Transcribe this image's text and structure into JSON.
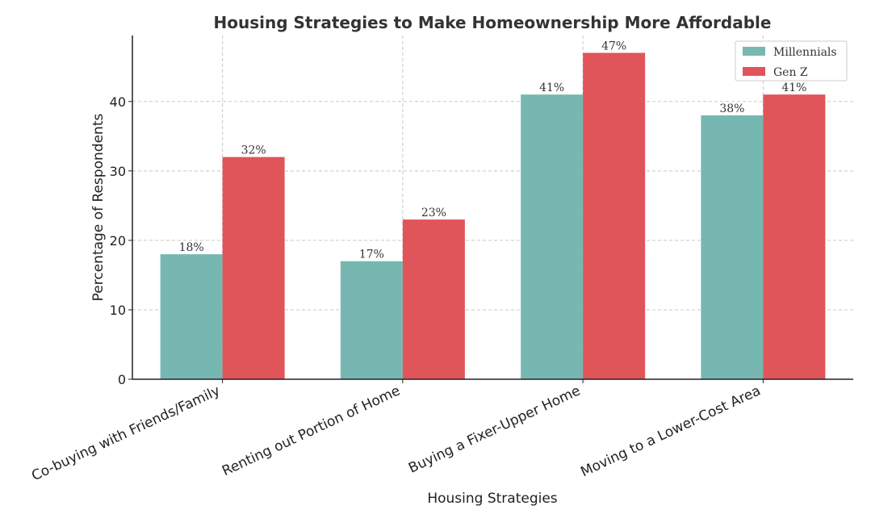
{
  "chart_data": {
    "type": "bar",
    "title": "Housing Strategies to Make Homeownership More Affordable",
    "xlabel": "Housing Strategies",
    "ylabel": "Percentage of Respondents",
    "categories": [
      "Co-buying with Friends/Family",
      "Renting out Portion of Home",
      "Buying a Fixer-Upper Home",
      "Moving to a Lower-Cost Area"
    ],
    "series": [
      {
        "name": "Millennials",
        "color": "#77b7b1",
        "values": [
          18,
          17,
          41,
          38
        ]
      },
      {
        "name": "Gen Z",
        "color": "#e0555a",
        "values": [
          32,
          23,
          47,
          41
        ]
      }
    ],
    "ylim": [
      0,
      49.5
    ],
    "yticks": [
      0,
      10,
      20,
      30,
      40
    ],
    "value_suffix": "%",
    "grid": true,
    "legend": "top-right"
  }
}
